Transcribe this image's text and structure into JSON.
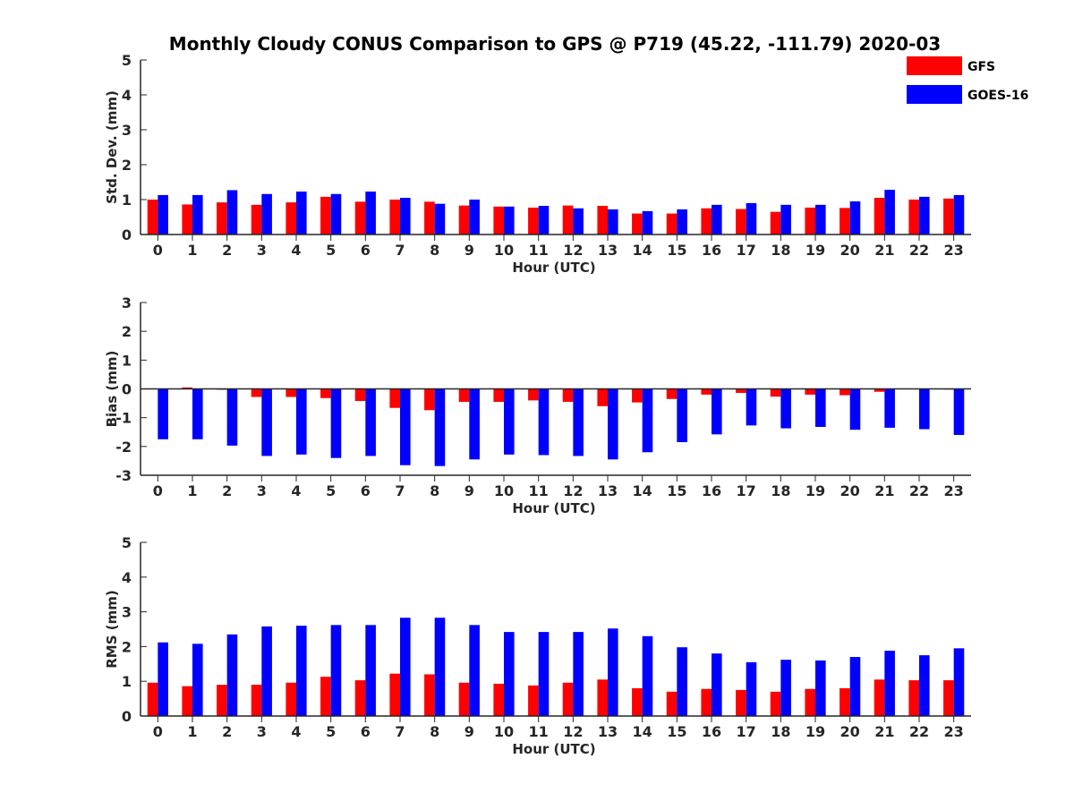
{
  "chart_data": {
    "title": "Monthly Cloudy CONUS Comparison to GPS @ P719 (45.22, -111.79) 2020-03",
    "legend": [
      {
        "name": "GFS",
        "color": "#ff0000"
      },
      {
        "name": "GOES-16",
        "color": "#0000ff"
      }
    ],
    "legend_position": "top-right",
    "panels": [
      {
        "type": "bar",
        "ylabel": "Std. Dev. (mm)",
        "xlabel": "Hour (UTC)",
        "ylim": [
          0,
          5
        ],
        "yticks": [
          0,
          1,
          2,
          3,
          4,
          5
        ],
        "baseline": 0,
        "categories": [
          "0",
          "1",
          "2",
          "3",
          "4",
          "5",
          "6",
          "7",
          "8",
          "9",
          "10",
          "11",
          "12",
          "13",
          "14",
          "15",
          "16",
          "17",
          "18",
          "19",
          "20",
          "21",
          "22",
          "23"
        ],
        "series": [
          {
            "name": "GFS",
            "color": "#ff0000",
            "values": [
              1.0,
              0.86,
              0.92,
              0.85,
              0.92,
              1.08,
              0.94,
              1.0,
              0.94,
              0.83,
              0.8,
              0.77,
              0.83,
              0.82,
              0.6,
              0.6,
              0.75,
              0.73,
              0.65,
              0.77,
              0.76,
              1.05,
              1.0,
              1.03
            ]
          },
          {
            "name": "GOES-16",
            "color": "#0000ff",
            "values": [
              1.13,
              1.13,
              1.27,
              1.16,
              1.23,
              1.16,
              1.23,
              1.05,
              0.88,
              1.0,
              0.8,
              0.82,
              0.75,
              0.72,
              0.67,
              0.72,
              0.85,
              0.9,
              0.85,
              0.85,
              0.95,
              1.28,
              1.08,
              1.13
            ]
          }
        ]
      },
      {
        "type": "bar",
        "ylabel": "Bias (mm)",
        "xlabel": "Hour (UTC)",
        "ylim": [
          -3,
          3
        ],
        "yticks": [
          -3,
          -2,
          -1,
          0,
          1,
          2,
          3
        ],
        "baseline": 0,
        "categories": [
          "0",
          "1",
          "2",
          "3",
          "4",
          "5",
          "6",
          "7",
          "8",
          "9",
          "10",
          "11",
          "12",
          "13",
          "14",
          "15",
          "16",
          "17",
          "18",
          "19",
          "20",
          "21",
          "22",
          "23"
        ],
        "series": [
          {
            "name": "GFS",
            "color": "#ff0000",
            "values": [
              0.0,
              0.05,
              -0.03,
              -0.28,
              -0.28,
              -0.32,
              -0.42,
              -0.66,
              -0.74,
              -0.45,
              -0.45,
              -0.4,
              -0.45,
              -0.6,
              -0.47,
              -0.35,
              -0.2,
              -0.14,
              -0.27,
              -0.2,
              -0.22,
              -0.1,
              0.0,
              -0.02
            ]
          },
          {
            "name": "GOES-16",
            "color": "#0000ff",
            "values": [
              -1.75,
              -1.75,
              -1.97,
              -2.33,
              -2.28,
              -2.4,
              -2.33,
              -2.65,
              -2.68,
              -2.45,
              -2.28,
              -2.3,
              -2.33,
              -2.45,
              -2.2,
              -1.85,
              -1.58,
              -1.27,
              -1.37,
              -1.32,
              -1.42,
              -1.35,
              -1.4,
              -1.6
            ]
          }
        ]
      },
      {
        "type": "bar",
        "ylabel": "RMS (mm)",
        "xlabel": "Hour (UTC)",
        "ylim": [
          0,
          5
        ],
        "yticks": [
          0,
          1,
          2,
          3,
          4,
          5
        ],
        "baseline": 0,
        "categories": [
          "0",
          "1",
          "2",
          "3",
          "4",
          "5",
          "6",
          "7",
          "8",
          "9",
          "10",
          "11",
          "12",
          "13",
          "14",
          "15",
          "16",
          "17",
          "18",
          "19",
          "20",
          "21",
          "22",
          "23"
        ],
        "series": [
          {
            "name": "GFS",
            "color": "#ff0000",
            "values": [
              0.96,
              0.86,
              0.9,
              0.9,
              0.96,
              1.13,
              1.03,
              1.22,
              1.2,
              0.96,
              0.93,
              0.88,
              0.96,
              1.05,
              0.8,
              0.7,
              0.78,
              0.75,
              0.7,
              0.78,
              0.8,
              1.05,
              1.03,
              1.03
            ]
          },
          {
            "name": "GOES-16",
            "color": "#0000ff",
            "values": [
              2.12,
              2.08,
              2.35,
              2.58,
              2.6,
              2.62,
              2.62,
              2.83,
              2.83,
              2.62,
              2.42,
              2.42,
              2.42,
              2.52,
              2.3,
              1.98,
              1.8,
              1.55,
              1.62,
              1.6,
              1.7,
              1.88,
              1.75,
              1.95
            ]
          }
        ]
      }
    ]
  }
}
